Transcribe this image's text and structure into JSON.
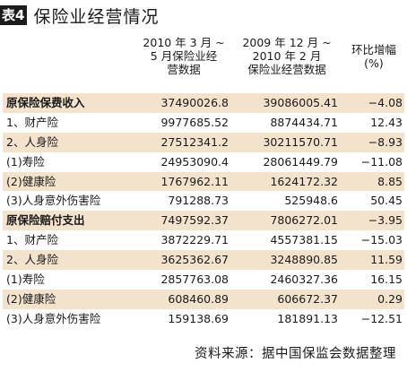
{
  "table": {
    "tag": "表4",
    "title": "保险业经营情况",
    "columns": [
      "2010年3月～5月保险业经营数据",
      "2009年12月～2010年2月保险业经营数据",
      "环比增幅（%）"
    ],
    "rows": [
      {
        "label": "原保险保费收入",
        "v1": "37490026.8",
        "v2": "39086005.41",
        "v3": "−4.08"
      },
      {
        "label": "1、财产险",
        "v1": "9977685.52",
        "v2": "8874434.71",
        "v3": "12.43"
      },
      {
        "label": "2、人身险",
        "v1": "27512341.2",
        "v2": "30211570.71",
        "v3": "−8.93"
      },
      {
        "label": "(1)寿险",
        "v1": "24953090.4",
        "v2": "28061449.79",
        "v3": "−11.08"
      },
      {
        "label": "(2)健康险",
        "v1": "1767962.11",
        "v2": "1624172.32",
        "v3": "8.85"
      },
      {
        "label": "(3)人身意外伤害险",
        "v1": "791288.73",
        "v2": "525948.6",
        "v3": "50.45"
      },
      {
        "label": "原保险赔付支出",
        "v1": "7497592.37",
        "v2": "7806272.01",
        "v3": "−3.95"
      },
      {
        "label": "1、财产险",
        "v1": "3872229.71",
        "v2": "4557381.15",
        "v3": "−15.03"
      },
      {
        "label": "2、人身险",
        "v1": "3625362.67",
        "v2": "3248890.85",
        "v3": "11.59"
      },
      {
        "label": "(1)寿险",
        "v1": "2857763.08",
        "v2": "2460327.36",
        "v3": "16.15"
      },
      {
        "label": "(2)健康险",
        "v1": "608460.89",
        "v2": "606672.37",
        "v3": "0.29"
      },
      {
        "label": "(3)人身意外伤害险",
        "v1": "159138.69",
        "v2": "181891.13",
        "v3": "−12.51"
      }
    ],
    "source": "资料来源：据中国保监会数据整理",
    "colors": {
      "row_shade": "#f3e2cc",
      "tag_bg": "#1c1c1c"
    }
  }
}
